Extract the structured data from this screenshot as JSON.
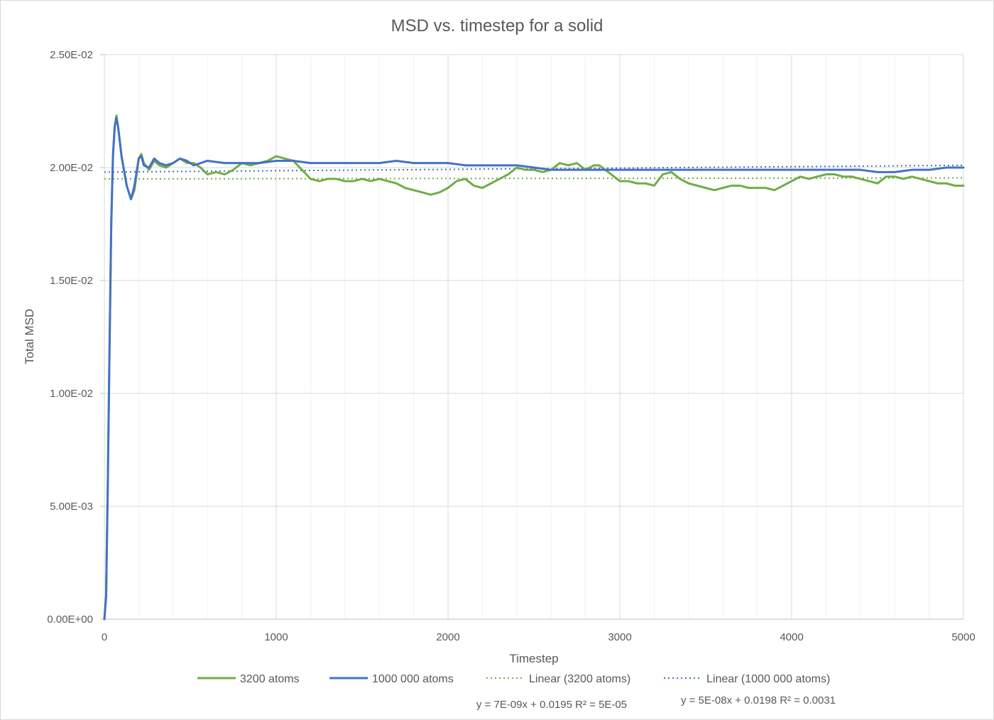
{
  "chart_data": {
    "type": "line",
    "title": "MSD vs. timestep for a solid",
    "xlabel": "Timestep",
    "ylabel": "Total MSD",
    "xlim": [
      0,
      5000
    ],
    "ylim": [
      0,
      0.025
    ],
    "x_ticks": [
      "0",
      "1000",
      "2000",
      "3000",
      "4000",
      "5000"
    ],
    "y_ticks": [
      "0.00E+00",
      "5.00E-03",
      "1.00E-02",
      "1.50E-02",
      "2.00E-02",
      "2.50E-02"
    ],
    "grid": true,
    "minor_grid_x": true,
    "legend_position": "bottom",
    "series": [
      {
        "name": "3200 atoms",
        "color": "#70ad47",
        "style": "solid",
        "points": [
          [
            0,
            0
          ],
          [
            10,
            0.001
          ],
          [
            20,
            0.006
          ],
          [
            30,
            0.012
          ],
          [
            40,
            0.0175
          ],
          [
            50,
            0.0205
          ],
          [
            60,
            0.0218
          ],
          [
            70,
            0.0223
          ],
          [
            80,
            0.0218
          ],
          [
            100,
            0.0205
          ],
          [
            130,
            0.0192
          ],
          [
            155,
            0.0186
          ],
          [
            175,
            0.019
          ],
          [
            200,
            0.0204
          ],
          [
            215,
            0.0206
          ],
          [
            230,
            0.0202
          ],
          [
            260,
            0.0199
          ],
          [
            290,
            0.0203
          ],
          [
            320,
            0.0201
          ],
          [
            360,
            0.02
          ],
          [
            400,
            0.0202
          ],
          [
            440,
            0.0204
          ],
          [
            480,
            0.0202
          ],
          [
            520,
            0.0202
          ],
          [
            560,
            0.02
          ],
          [
            600,
            0.0197
          ],
          [
            650,
            0.0198
          ],
          [
            700,
            0.0197
          ],
          [
            750,
            0.0199
          ],
          [
            800,
            0.0202
          ],
          [
            850,
            0.0201
          ],
          [
            900,
            0.0202
          ],
          [
            950,
            0.0203
          ],
          [
            1000,
            0.0205
          ],
          [
            1050,
            0.0204
          ],
          [
            1100,
            0.0203
          ],
          [
            1150,
            0.0199
          ],
          [
            1200,
            0.0195
          ],
          [
            1250,
            0.0194
          ],
          [
            1300,
            0.0195
          ],
          [
            1350,
            0.0195
          ],
          [
            1400,
            0.0194
          ],
          [
            1450,
            0.0194
          ],
          [
            1500,
            0.0195
          ],
          [
            1550,
            0.0194
          ],
          [
            1600,
            0.0195
          ],
          [
            1650,
            0.0194
          ],
          [
            1700,
            0.0193
          ],
          [
            1750,
            0.0191
          ],
          [
            1800,
            0.019
          ],
          [
            1850,
            0.0189
          ],
          [
            1900,
            0.0188
          ],
          [
            1950,
            0.0189
          ],
          [
            2000,
            0.0191
          ],
          [
            2050,
            0.0194
          ],
          [
            2100,
            0.0195
          ],
          [
            2150,
            0.0192
          ],
          [
            2200,
            0.0191
          ],
          [
            2250,
            0.0193
          ],
          [
            2300,
            0.0195
          ],
          [
            2350,
            0.0197
          ],
          [
            2400,
            0.02
          ],
          [
            2450,
            0.0199
          ],
          [
            2500,
            0.0199
          ],
          [
            2550,
            0.0198
          ],
          [
            2600,
            0.0199
          ],
          [
            2650,
            0.0202
          ],
          [
            2700,
            0.0201
          ],
          [
            2750,
            0.0202
          ],
          [
            2800,
            0.0199
          ],
          [
            2850,
            0.0201
          ],
          [
            2880,
            0.0201
          ],
          [
            2950,
            0.0197
          ],
          [
            3000,
            0.0194
          ],
          [
            3050,
            0.0194
          ],
          [
            3100,
            0.0193
          ],
          [
            3150,
            0.0193
          ],
          [
            3200,
            0.0192
          ],
          [
            3250,
            0.0197
          ],
          [
            3300,
            0.0198
          ],
          [
            3350,
            0.0195
          ],
          [
            3400,
            0.0193
          ],
          [
            3450,
            0.0192
          ],
          [
            3500,
            0.0191
          ],
          [
            3550,
            0.019
          ],
          [
            3600,
            0.0191
          ],
          [
            3650,
            0.0192
          ],
          [
            3700,
            0.0192
          ],
          [
            3750,
            0.0191
          ],
          [
            3800,
            0.0191
          ],
          [
            3850,
            0.0191
          ],
          [
            3900,
            0.019
          ],
          [
            3950,
            0.0192
          ],
          [
            4000,
            0.0194
          ],
          [
            4050,
            0.0196
          ],
          [
            4100,
            0.0195
          ],
          [
            4150,
            0.0196
          ],
          [
            4200,
            0.0197
          ],
          [
            4250,
            0.0197
          ],
          [
            4300,
            0.0196
          ],
          [
            4350,
            0.0196
          ],
          [
            4400,
            0.0195
          ],
          [
            4450,
            0.0194
          ],
          [
            4500,
            0.0193
          ],
          [
            4550,
            0.0196
          ],
          [
            4600,
            0.0196
          ],
          [
            4650,
            0.0195
          ],
          [
            4700,
            0.0196
          ],
          [
            4750,
            0.0195
          ],
          [
            4800,
            0.0194
          ],
          [
            4850,
            0.0193
          ],
          [
            4900,
            0.0193
          ],
          [
            4950,
            0.0192
          ],
          [
            5000,
            0.0192
          ]
        ]
      },
      {
        "name": "1000 000 atoms",
        "color": "#4472c4",
        "style": "solid",
        "points": [
          [
            0,
            0
          ],
          [
            10,
            0.001
          ],
          [
            20,
            0.006
          ],
          [
            30,
            0.012
          ],
          [
            40,
            0.0175
          ],
          [
            50,
            0.0205
          ],
          [
            60,
            0.0218
          ],
          [
            70,
            0.0222
          ],
          [
            80,
            0.0218
          ],
          [
            100,
            0.0205
          ],
          [
            130,
            0.0192
          ],
          [
            155,
            0.0186
          ],
          [
            175,
            0.0192
          ],
          [
            200,
            0.0204
          ],
          [
            215,
            0.0205
          ],
          [
            230,
            0.0201
          ],
          [
            260,
            0.02
          ],
          [
            290,
            0.0204
          ],
          [
            320,
            0.0202
          ],
          [
            360,
            0.0201
          ],
          [
            400,
            0.0202
          ],
          [
            440,
            0.0204
          ],
          [
            480,
            0.0203
          ],
          [
            520,
            0.0201
          ],
          [
            560,
            0.0202
          ],
          [
            600,
            0.0203
          ],
          [
            700,
            0.0202
          ],
          [
            800,
            0.0202
          ],
          [
            900,
            0.0202
          ],
          [
            1000,
            0.0203
          ],
          [
            1100,
            0.0203
          ],
          [
            1200,
            0.0202
          ],
          [
            1300,
            0.0202
          ],
          [
            1400,
            0.0202
          ],
          [
            1500,
            0.0202
          ],
          [
            1600,
            0.0202
          ],
          [
            1700,
            0.0203
          ],
          [
            1800,
            0.0202
          ],
          [
            1900,
            0.0202
          ],
          [
            2000,
            0.0202
          ],
          [
            2100,
            0.0201
          ],
          [
            2200,
            0.0201
          ],
          [
            2300,
            0.0201
          ],
          [
            2400,
            0.0201
          ],
          [
            2500,
            0.02
          ],
          [
            2600,
            0.0199
          ],
          [
            2700,
            0.0199
          ],
          [
            2800,
            0.0199
          ],
          [
            2900,
            0.0199
          ],
          [
            3000,
            0.0199
          ],
          [
            3100,
            0.0199
          ],
          [
            3200,
            0.0199
          ],
          [
            3300,
            0.0199
          ],
          [
            3400,
            0.0199
          ],
          [
            3500,
            0.0199
          ],
          [
            3600,
            0.0199
          ],
          [
            3700,
            0.0199
          ],
          [
            3800,
            0.0199
          ],
          [
            3900,
            0.0199
          ],
          [
            4000,
            0.0199
          ],
          [
            4100,
            0.0199
          ],
          [
            4200,
            0.0199
          ],
          [
            4300,
            0.0199
          ],
          [
            4400,
            0.0199
          ],
          [
            4500,
            0.0198
          ],
          [
            4600,
            0.0198
          ],
          [
            4700,
            0.0199
          ],
          [
            4800,
            0.0199
          ],
          [
            4900,
            0.02
          ],
          [
            5000,
            0.02
          ]
        ]
      },
      {
        "name": "Linear (3200 atoms)",
        "color": "#70ad47",
        "style": "dotted",
        "points": [
          [
            0,
            0.0195
          ],
          [
            5000,
            0.01954
          ]
        ]
      },
      {
        "name": "Linear (1000 000 atoms)",
        "color": "#4472c4",
        "style": "dotted",
        "points": [
          [
            0,
            0.0198
          ],
          [
            5000,
            0.0201
          ]
        ]
      }
    ],
    "annotations": [
      "y = 7E-09x + 0.0195  R² = 5E-05",
      "y = 5E-08x + 0.0198  R² = 0.0031"
    ]
  }
}
